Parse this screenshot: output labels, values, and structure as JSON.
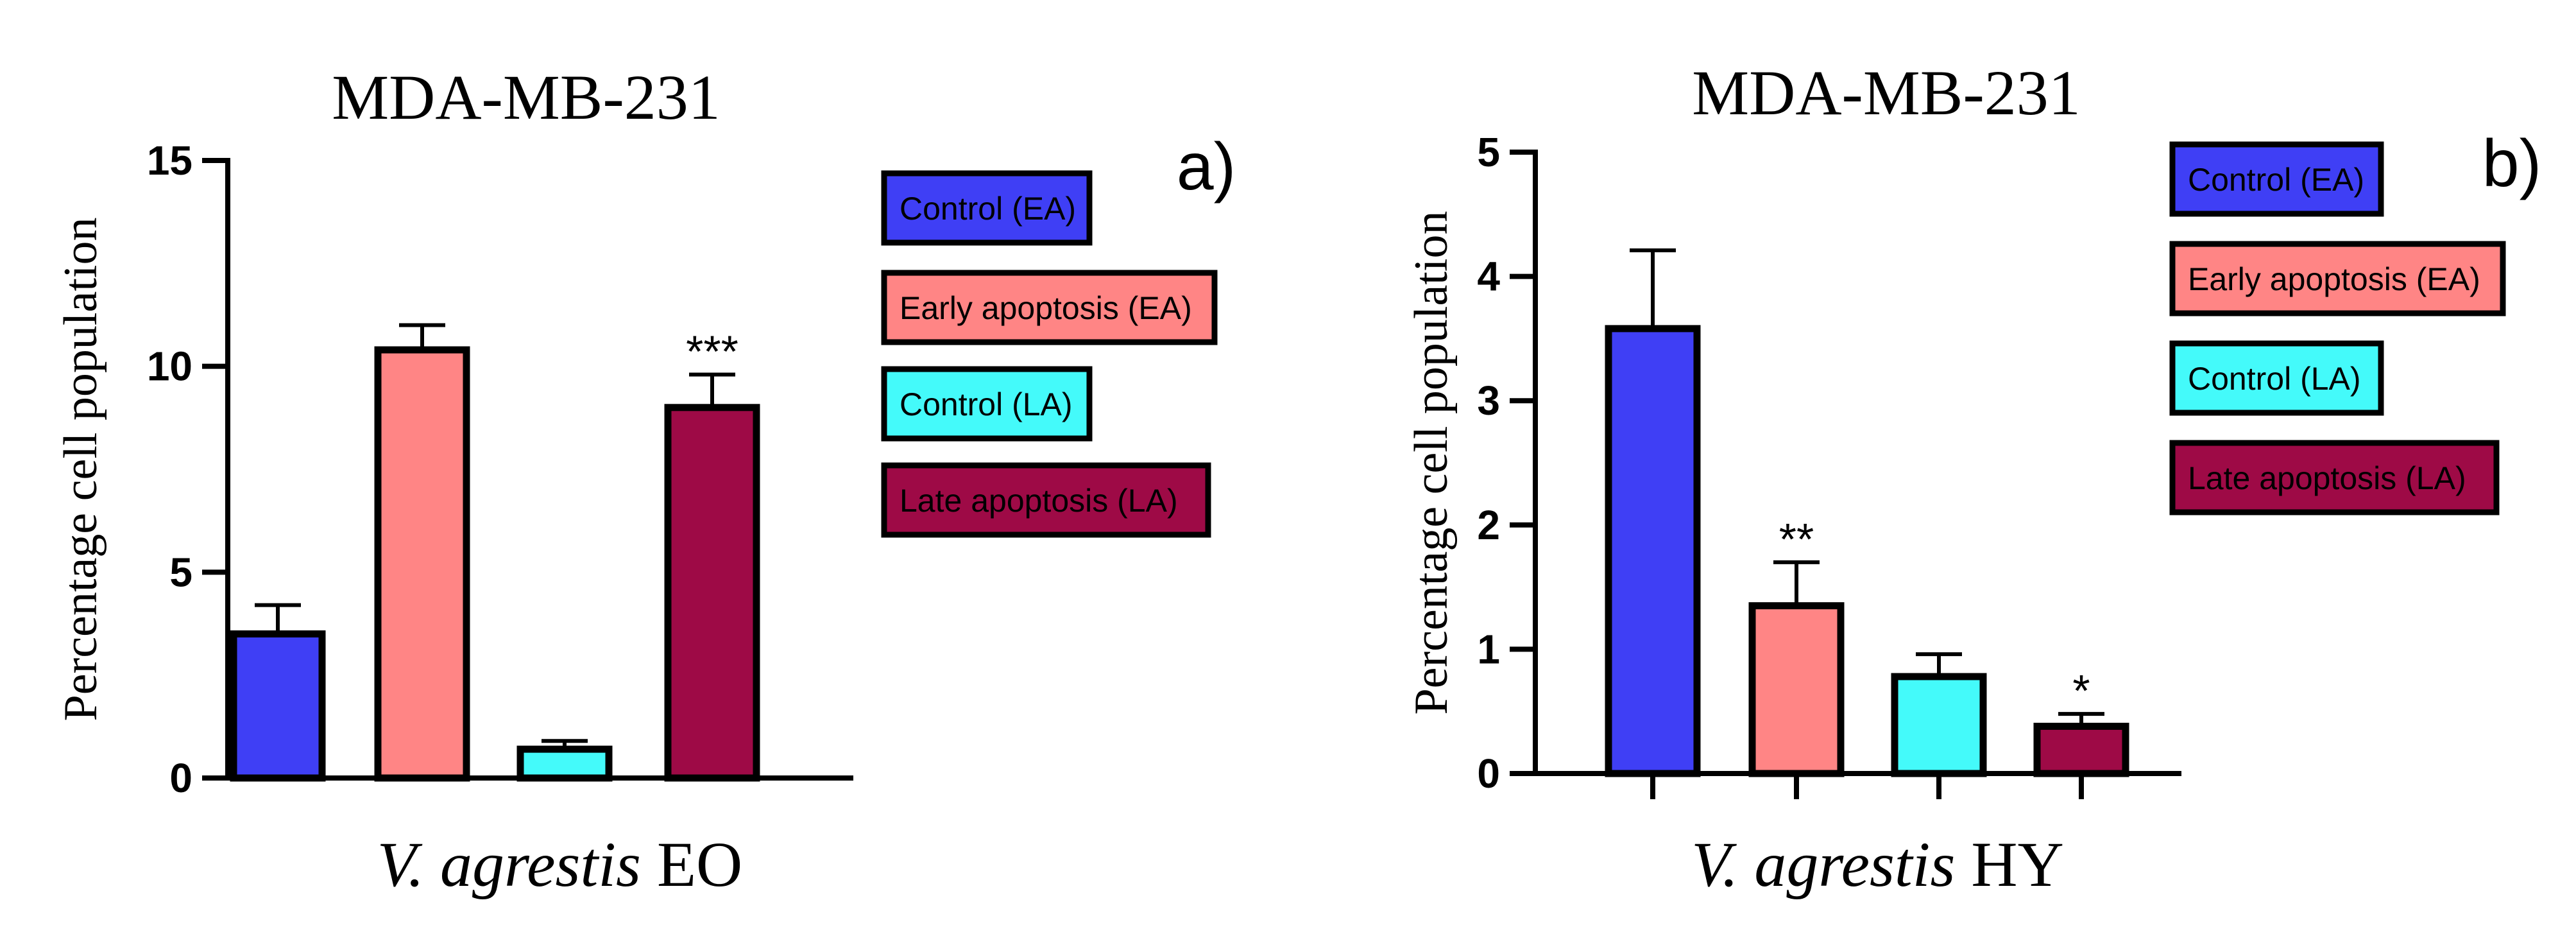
{
  "chart_data": [
    {
      "type": "bar",
      "title": "MDA-MB-231",
      "panel_label": "a)",
      "ylabel": "Percentage cell population",
      "xlabel_italic": "V. agrestis",
      "xlabel_rest": " EO",
      "ylim": [
        0,
        15
      ],
      "yticks": [
        0,
        5,
        10,
        15
      ],
      "yticklabels": [
        "0",
        "5",
        "10",
        "15"
      ],
      "categories": [
        "Control (EA)",
        "Early apoptosis (EA)",
        "Control (LA)",
        "Late apoptosis (LA)"
      ],
      "values": [
        3.5,
        10.4,
        0.7,
        9.0
      ],
      "errors": [
        0.7,
        0.6,
        0.2,
        0.8
      ],
      "significance": [
        "",
        "",
        "",
        "***"
      ],
      "colors": [
        "#3f3ff5",
        "#ff8585",
        "#44fafa",
        "#9e0a46"
      ],
      "legend": [
        "Control (EA)",
        "Early apoptosis (EA)",
        "Control (LA)",
        "Late apoptosis (LA)"
      ],
      "legend_position": "right",
      "x_ticks": false
    },
    {
      "type": "bar",
      "title": "MDA-MB-231",
      "panel_label": "b)",
      "ylabel": "Percentage cell population",
      "xlabel_italic": "V. agrestis",
      "xlabel_rest": " HY",
      "ylim": [
        0,
        5
      ],
      "yticks": [
        0,
        1,
        2,
        3,
        4,
        5
      ],
      "yticklabels": [
        "0",
        "1",
        "2",
        "3",
        "4",
        "5"
      ],
      "categories": [
        "Control (EA)",
        "Early apoptosis (EA)",
        "Control (LA)",
        "Late apoptosis (LA)"
      ],
      "values": [
        3.58,
        1.35,
        0.78,
        0.38
      ],
      "errors": [
        0.63,
        0.35,
        0.18,
        0.1
      ],
      "significance": [
        "",
        "**",
        "",
        "*"
      ],
      "colors": [
        "#3f3ff5",
        "#ff8585",
        "#44fafa",
        "#9e0a46"
      ],
      "legend": [
        "Control (EA)",
        "Early apoptosis (EA)",
        "Control (LA)",
        "Late apoptosis (LA)"
      ],
      "legend_position": "right",
      "x_ticks": true
    }
  ]
}
